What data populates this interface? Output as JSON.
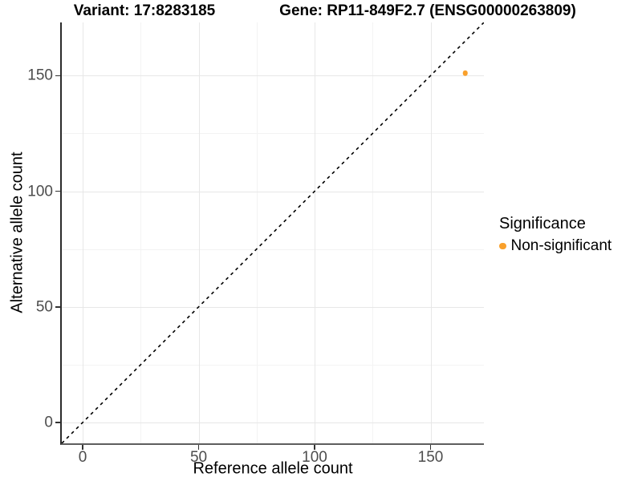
{
  "titles": {
    "left": "Variant: 17:8283185",
    "right": "Gene: RP11-849F2.7 (ENSG00000263809)"
  },
  "chart_data": {
    "type": "scatter",
    "xlabel": "Reference allele count",
    "ylabel": "Alternative allele count",
    "xlim": [
      -9,
      173
    ],
    "ylim": [
      -9,
      173
    ],
    "xticks": [
      0,
      50,
      100,
      150
    ],
    "yticks": [
      0,
      50,
      100,
      150
    ],
    "xticks_minor": [
      25,
      75,
      125
    ],
    "yticks_minor": [
      25,
      75,
      125
    ],
    "grid": true,
    "points": [
      {
        "x": 165,
        "y": 151,
        "series": "Non-significant"
      }
    ],
    "identity_line": {
      "style": "dashed",
      "color": "#000000"
    },
    "legend": {
      "position": "right",
      "title": "Significance",
      "entries": [
        {
          "label": "Non-significant",
          "color": "#F9A02B"
        }
      ]
    }
  },
  "colors": {
    "point": "#F9A02B",
    "grid_major": "#e7e7e7",
    "grid_minor": "#f3f3f3",
    "tick_label": "#4d4d4d"
  }
}
